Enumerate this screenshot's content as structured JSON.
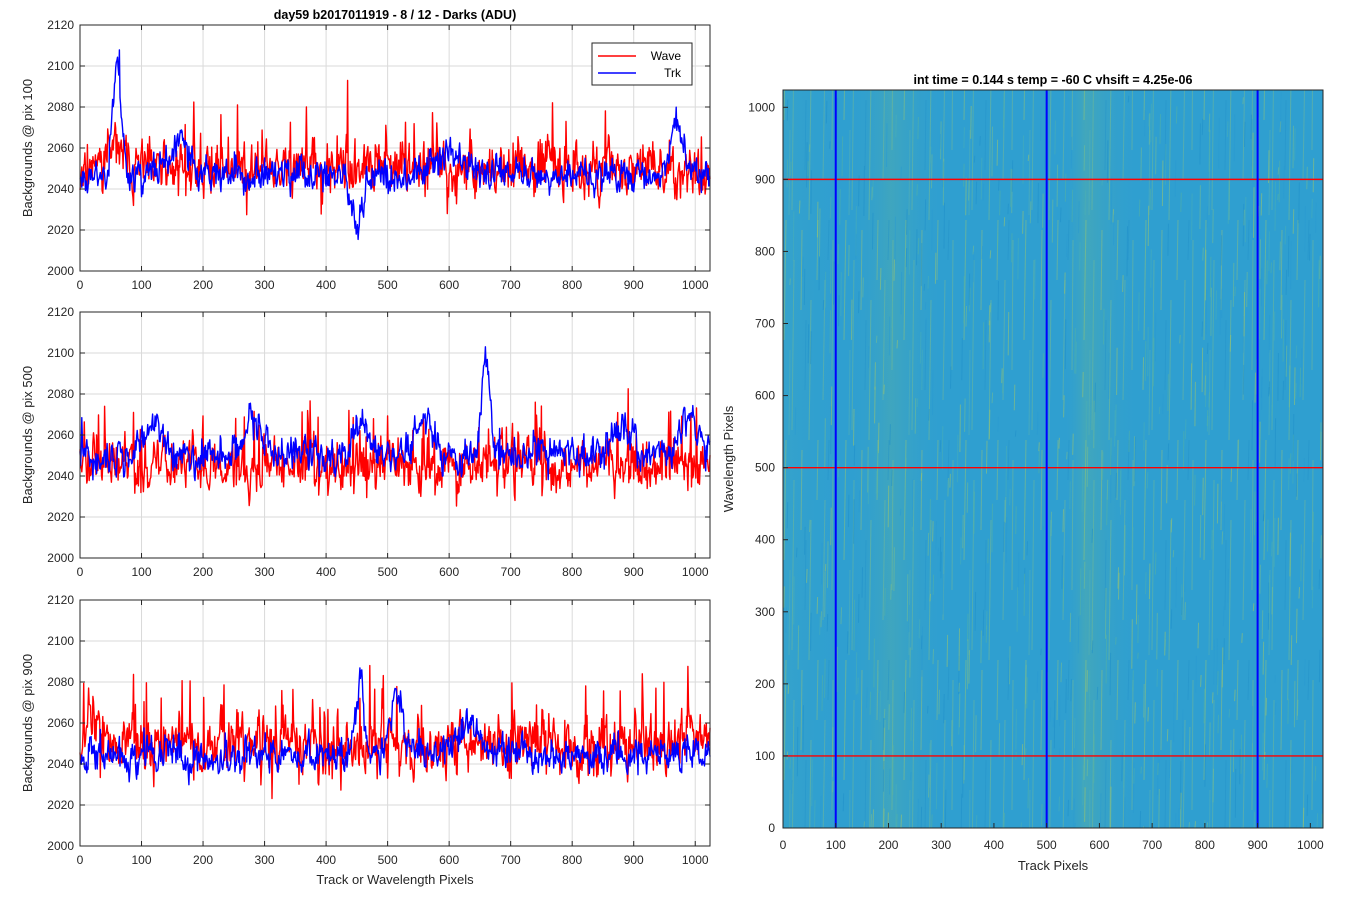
{
  "colors": {
    "wave": "#ff0000",
    "trk": "#0000ff",
    "image_base": "#2f9fd0",
    "image_light": "#6fb98a",
    "image_streak": "#b8c860",
    "axis": "#262626",
    "grid": "#dadada"
  },
  "chart_data": [
    {
      "type": "line",
      "title": "day59 b2017011919 - 8 / 12 - Darks (ADU)",
      "xlabel": "",
      "ylabel": "Backgrounds @ pix 100",
      "xlim": [
        0,
        1024
      ],
      "ylim": [
        2000,
        2120
      ],
      "xticks": [
        0,
        100,
        200,
        300,
        400,
        500,
        600,
        700,
        800,
        900,
        1000
      ],
      "yticks": [
        2000,
        2020,
        2040,
        2060,
        2080,
        2100,
        2120
      ],
      "grid": true,
      "legend": {
        "position": "top-right",
        "entries": [
          "Wave",
          "Trk"
        ]
      },
      "series": [
        {
          "name": "Wave",
          "color": "#ff0000",
          "mean": 2050,
          "noise": 11,
          "spike_rate": 0.05,
          "spike_size": 28,
          "seed": 11,
          "bumps": [
            [
              55,
              2060,
              20
            ]
          ],
          "min": 2014,
          "max": 2096
        },
        {
          "name": "Trk",
          "color": "#0000ff",
          "mean": 2047,
          "noise": 7,
          "spike_rate": 0.01,
          "spike_size": 12,
          "seed": 23,
          "bumps": [
            [
              60,
              2102,
              10
            ],
            [
              160,
              2062,
              22
            ],
            [
              450,
              2025,
              15
            ],
            [
              600,
              2058,
              40
            ],
            [
              970,
              2072,
              15
            ]
          ],
          "min": 2014,
          "max": 2108
        }
      ]
    },
    {
      "type": "line",
      "title": "",
      "xlabel": "",
      "ylabel": "Backgrounds @ pix 500",
      "xlim": [
        0,
        1024
      ],
      "ylim": [
        2000,
        2120
      ],
      "xticks": [
        0,
        100,
        200,
        300,
        400,
        500,
        600,
        700,
        800,
        900,
        1000
      ],
      "yticks": [
        2000,
        2020,
        2040,
        2060,
        2080,
        2100,
        2120
      ],
      "grid": true,
      "series": [
        {
          "name": "Wave",
          "color": "#ff0000",
          "mean": 2045,
          "noise": 11,
          "spike_rate": 0.06,
          "spike_size": 30,
          "seed": 37,
          "bumps": [],
          "min": 2008,
          "max": 2105
        },
        {
          "name": "Trk",
          "color": "#0000ff",
          "mean": 2050,
          "noise": 7,
          "spike_rate": 0.01,
          "spike_size": 12,
          "seed": 41,
          "bumps": [
            [
              120,
              2065,
              20
            ],
            [
              280,
              2066,
              20
            ],
            [
              455,
              2068,
              15
            ],
            [
              560,
              2068,
              18
            ],
            [
              660,
              2096,
              10
            ],
            [
              880,
              2064,
              25
            ],
            [
              990,
              2068,
              20
            ]
          ],
          "min": 2025,
          "max": 2106
        }
      ]
    },
    {
      "type": "line",
      "title": "",
      "xlabel": "Track or Wavelength Pixels",
      "ylabel": "Backgrounds @ pix 900",
      "xlim": [
        0,
        1024
      ],
      "ylim": [
        2000,
        2120
      ],
      "xticks": [
        0,
        100,
        200,
        300,
        400,
        500,
        600,
        700,
        800,
        900,
        1000
      ],
      "yticks": [
        2000,
        2020,
        2040,
        2060,
        2080,
        2100,
        2120
      ],
      "grid": true,
      "series": [
        {
          "name": "Wave",
          "color": "#ff0000",
          "mean": 2050,
          "noise": 12,
          "spike_rate": 0.06,
          "spike_size": 32,
          "seed": 53,
          "bumps": [
            [
              15,
              2065,
              15
            ]
          ],
          "min": 2005,
          "max": 2107
        },
        {
          "name": "Trk",
          "color": "#0000ff",
          "mean": 2045,
          "noise": 7,
          "spike_rate": 0.01,
          "spike_size": 12,
          "seed": 67,
          "bumps": [
            [
              455,
              2078,
              10
            ],
            [
              515,
              2076,
              14
            ],
            [
              630,
              2060,
              25
            ]
          ],
          "min": 2018,
          "max": 2090
        }
      ]
    },
    {
      "type": "heatmap",
      "title": "int time = 0.144 s   temp = -60 C   vhsift = 4.25e-06",
      "xlabel": "Track Pixels",
      "ylabel": "Wavelength Pixels",
      "xlim": [
        0,
        1024
      ],
      "ylim": [
        0,
        1024
      ],
      "xticks": [
        0,
        100,
        200,
        300,
        400,
        500,
        600,
        700,
        800,
        900,
        1000
      ],
      "yticks": [
        0,
        100,
        200,
        300,
        400,
        500,
        600,
        700,
        800,
        900,
        1000
      ],
      "vertical_lines": {
        "color": "#0000ff",
        "x": [
          100,
          500,
          900
        ]
      },
      "horizontal_lines": {
        "color": "#ff0000",
        "y": [
          100,
          500,
          900
        ]
      }
    }
  ]
}
